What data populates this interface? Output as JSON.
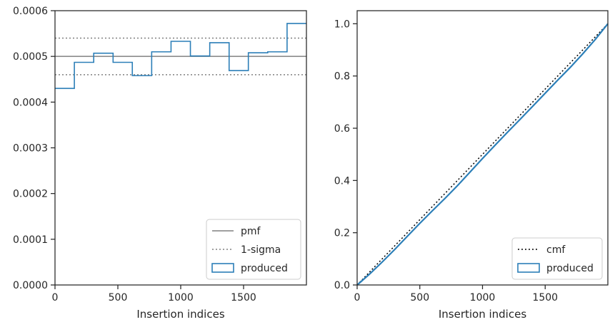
{
  "chart_data": [
    {
      "type": "step",
      "xlabel": "Insertion indices",
      "ylabel": "",
      "xlim": [
        0,
        2000
      ],
      "ylim": [
        0,
        0.0006
      ],
      "x_ticks": [
        0,
        500,
        1000,
        1500
      ],
      "x_tick_labels": [
        "0",
        "500",
        "1000",
        "1500"
      ],
      "y_ticks": [
        0,
        0.0001,
        0.0002,
        0.0003,
        0.0004,
        0.0005,
        0.0006
      ],
      "y_tick_labels": [
        "0.0000",
        "0.0001",
        "0.0002",
        "0.0003",
        "0.0004",
        "0.0005",
        "0.0006"
      ],
      "bin_edges": [
        0,
        154,
        308,
        462,
        615,
        769,
        923,
        1077,
        1231,
        1385,
        1538,
        1692,
        1846,
        2000
      ],
      "bin_values": [
        0.00043,
        0.000487,
        0.000507,
        0.000487,
        0.000458,
        0.00051,
        0.000533,
        0.000501,
        0.00053,
        0.000469,
        0.000508,
        0.00051,
        0.000572
      ],
      "reference_lines": [
        {
          "name": "pmf",
          "y": 0.0005,
          "style": "solid",
          "color": "#808080"
        },
        {
          "name": "1-sigma",
          "y": 0.00054,
          "style": "dotted",
          "color": "#808080"
        },
        {
          "name": "1-sigma",
          "y": 0.00046,
          "style": "dotted",
          "color": "#808080"
        }
      ],
      "series": [
        {
          "name": "produced",
          "color": "#2c7fb8"
        }
      ],
      "legend": {
        "placement": "lower-right",
        "entries": [
          {
            "label": "pmf",
            "style": "solid"
          },
          {
            "label": "1-sigma",
            "style": "dotted"
          },
          {
            "label": "produced",
            "style": "box"
          }
        ]
      },
      "grid": false
    },
    {
      "type": "line",
      "xlabel": "Insertion indices",
      "ylabel": "",
      "xlim": [
        0,
        2000
      ],
      "ylim": [
        0,
        1.05
      ],
      "x_ticks": [
        0,
        500,
        1000,
        1500
      ],
      "x_tick_labels": [
        "0",
        "500",
        "1000",
        "1500"
      ],
      "y_ticks": [
        0,
        0.2,
        0.4,
        0.6,
        0.8,
        1.0
      ],
      "y_tick_labels": [
        "0.0",
        "0.2",
        "0.4",
        "0.6",
        "0.8",
        "1.0"
      ],
      "series": [
        {
          "name": "cmf",
          "style": "dotted",
          "color": "#000000",
          "x": [
            0,
            2000
          ],
          "y": [
            0,
            1.0
          ]
        },
        {
          "name": "produced",
          "style": "solid",
          "color": "#2c7fb8",
          "x": [
            0,
            100,
            200,
            300,
            400,
            500,
            600,
            700,
            800,
            900,
            1000,
            1100,
            1200,
            1300,
            1400,
            1500,
            1600,
            1700,
            1800,
            1900,
            2000
          ],
          "y": [
            0,
            0.042,
            0.088,
            0.136,
            0.186,
            0.236,
            0.284,
            0.331,
            0.38,
            0.432,
            0.484,
            0.535,
            0.585,
            0.634,
            0.684,
            0.734,
            0.784,
            0.833,
            0.885,
            0.94,
            1.0
          ]
        }
      ],
      "legend": {
        "placement": "lower-right",
        "entries": [
          {
            "label": "cmf",
            "style": "dotted"
          },
          {
            "label": "produced",
            "style": "box"
          }
        ]
      },
      "grid": false
    }
  ]
}
